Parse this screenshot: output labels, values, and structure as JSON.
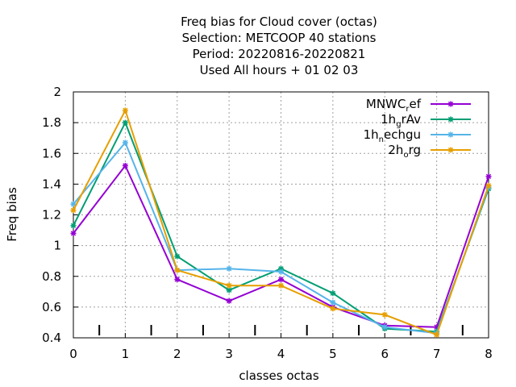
{
  "chart_data": {
    "type": "line",
    "title_lines": [
      "Freq bias  for Cloud cover (octas)",
      "Selection: METCOOP     40 stations",
      "Period: 20220816-20220821",
      "Used  All hours  + 01 02 03"
    ],
    "xlabel": "classes octas",
    "ylabel": "Freq bias",
    "xlim": [
      0,
      8
    ],
    "ylim": [
      0.4,
      2
    ],
    "x_ticks": [
      "0",
      "1",
      "2",
      "3",
      "4",
      "5",
      "6",
      "7",
      "8"
    ],
    "y_ticks": [
      "0.4",
      "0.6",
      "0.8",
      "1",
      "1.2",
      "1.4",
      "1.6",
      "1.8",
      "2"
    ],
    "grid": true,
    "legend_position": "top-right",
    "x": [
      0,
      1,
      2,
      3,
      4,
      5,
      6,
      7,
      8
    ],
    "series": [
      {
        "name": "MNWC_ref",
        "legend": {
          "base": "MNWC",
          "sub": "r",
          "rest": "ef"
        },
        "color": "#9400d3",
        "values": [
          1.08,
          1.52,
          0.78,
          0.64,
          0.78,
          0.6,
          0.48,
          0.47,
          1.45
        ]
      },
      {
        "name": "1h_grAv",
        "legend": {
          "base": "1h",
          "sub": "g",
          "rest": "rAv"
        },
        "color": "#009e73",
        "values": [
          1.13,
          1.8,
          0.93,
          0.71,
          0.85,
          0.69,
          0.46,
          0.44,
          1.37
        ]
      },
      {
        "name": "1h_nechgu",
        "legend": {
          "base": "1h",
          "sub": "n",
          "rest": "echgu"
        },
        "color": "#56b4e9",
        "values": [
          1.27,
          1.67,
          0.84,
          0.85,
          0.83,
          0.63,
          0.47,
          0.43,
          1.38
        ]
      },
      {
        "name": "2h_org",
        "legend": {
          "base": "2h",
          "sub": "o",
          "rest": "rg"
        },
        "color": "#e69f00",
        "values": [
          1.23,
          1.88,
          0.84,
          0.74,
          0.74,
          0.59,
          0.55,
          0.42,
          1.39
        ]
      }
    ]
  }
}
